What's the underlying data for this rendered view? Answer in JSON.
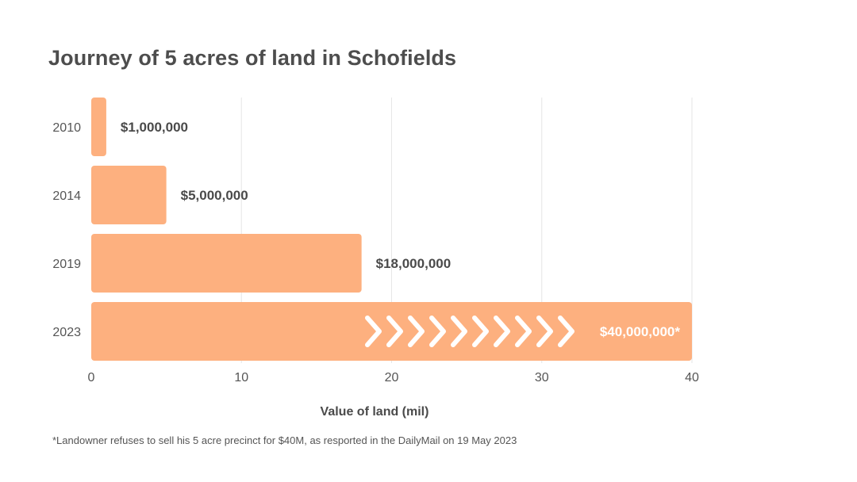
{
  "title": "Journey of 5 acres of land in Schofields",
  "footnote": "*Landowner refuses to sell his 5 acre precinct for $40M, as resported in the DailyMail on 19 May 2023",
  "colors": {
    "bar": "#FDB07F",
    "arrow": "#FFFFFF",
    "grid": "#E6E6E6",
    "text": "#4A4A4A"
  },
  "chart_data": {
    "type": "bar",
    "orientation": "horizontal",
    "categories": [
      "2010",
      "2014",
      "2019",
      "2023"
    ],
    "values": [
      1,
      5,
      18,
      40
    ],
    "data_labels": [
      "$1,000,000",
      "$5,000,000",
      "$18,000,000",
      "$40,000,000*"
    ],
    "xlabel": "Value of land (mil)",
    "ylabel": "",
    "xlim": [
      0,
      40
    ],
    "xticks": [
      "0",
      "10",
      "20",
      "30",
      "40"
    ],
    "grid": "vertical",
    "decorations": {
      "chevrons_on_last_bar": 10
    }
  }
}
